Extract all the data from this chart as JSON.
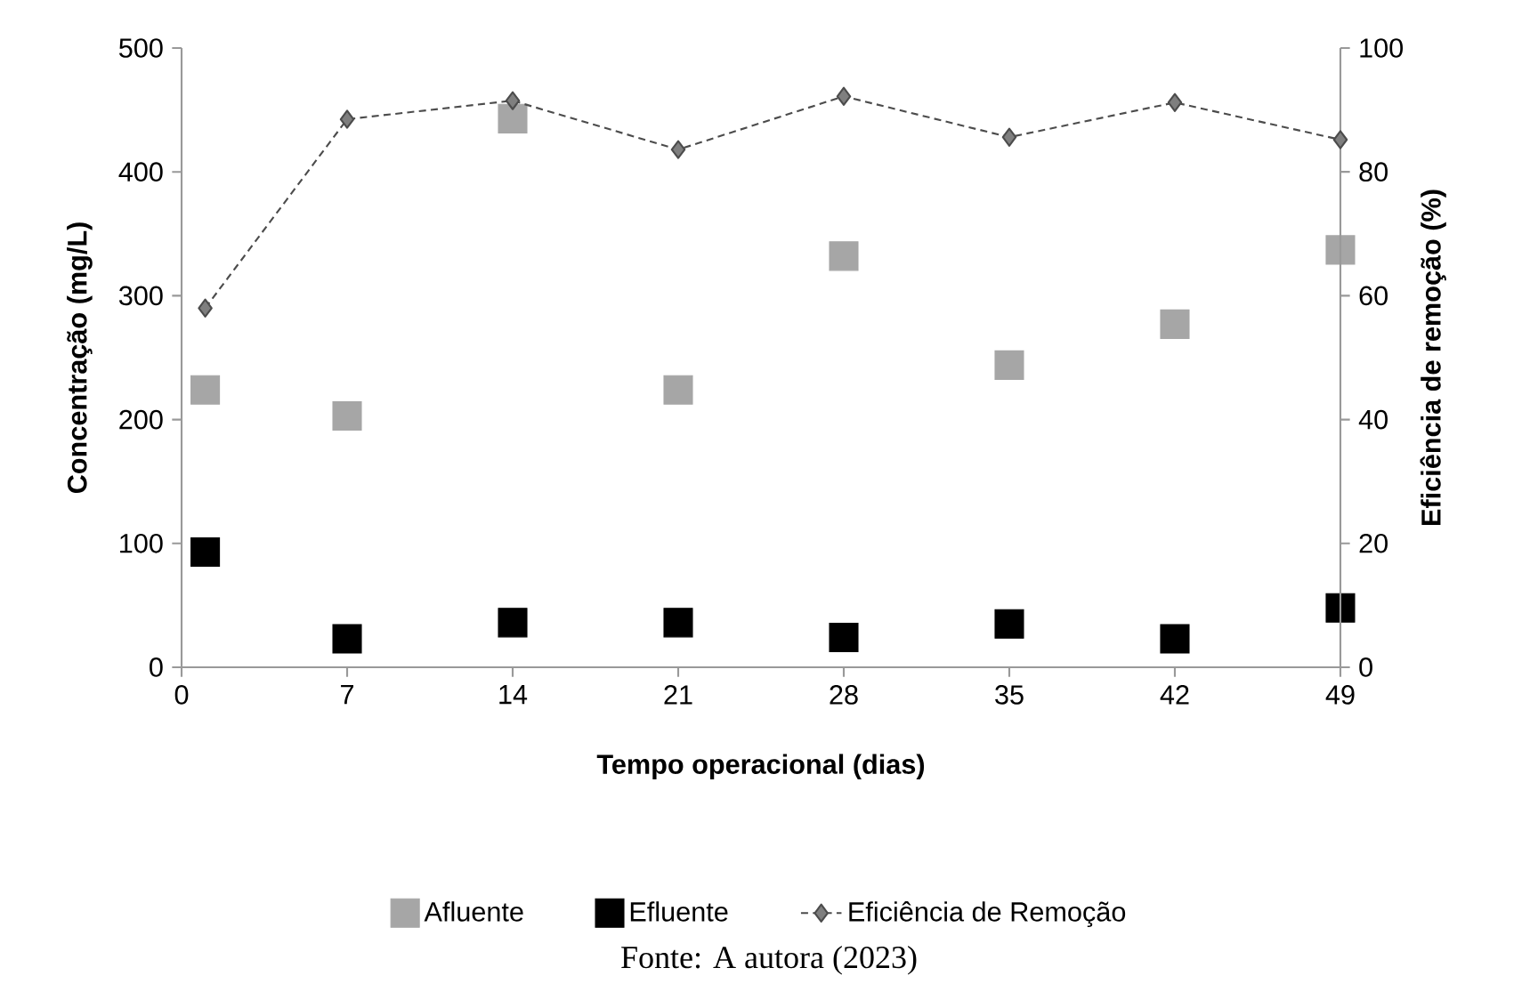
{
  "chart_data": {
    "type": "scatter",
    "xlabel": "Tempo operacional (dias)",
    "ylabel": "Concentração (mg/L)",
    "y2label": "Eficiência de remoção (%)",
    "x": [
      1,
      7,
      14,
      21,
      28,
      35,
      42,
      49
    ],
    "xlim": [
      0,
      49
    ],
    "xticks": [
      0,
      7,
      14,
      21,
      28,
      35,
      42,
      49
    ],
    "ylim": [
      0,
      500
    ],
    "yticks": [
      0,
      100,
      200,
      300,
      400,
      500
    ],
    "y2lim": [
      0,
      100
    ],
    "y2ticks": [
      0,
      20,
      40,
      60,
      80,
      100
    ],
    "legend": "bottom",
    "grid": false,
    "series": [
      {
        "name": "Afluente",
        "marker": "square",
        "color": "#a6a6a6",
        "values": [
          224,
          203,
          443,
          224,
          332,
          244,
          277,
          337
        ]
      },
      {
        "name": "Efluente",
        "marker": "square",
        "color": "#000000",
        "values": [
          93,
          23,
          36,
          36,
          24,
          35,
          23,
          48
        ]
      },
      {
        "name": "Eficiência de Remoção",
        "type": "line",
        "axis": "y2",
        "marker": "diamond",
        "line_style": "dashed",
        "color": "#7f7f7f",
        "values": [
          58,
          88.5,
          91.5,
          83.6,
          92.2,
          85.6,
          91.2,
          85.2
        ]
      }
    ],
    "annotations": [
      "Fonte: A autora (2023)"
    ]
  }
}
